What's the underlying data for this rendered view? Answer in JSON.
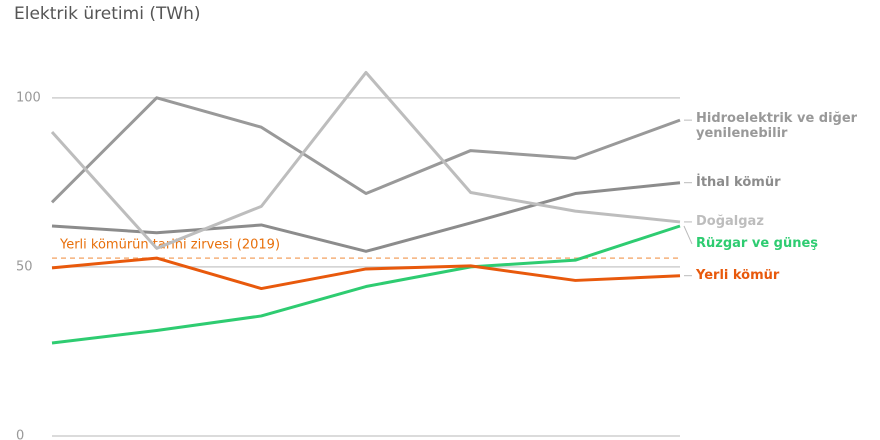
{
  "chart_data": {
    "type": "line",
    "title": "Elektrik üretimi (TWh)",
    "categories": [
      null,
      null,
      null,
      null,
      null,
      null,
      null
    ],
    "series": [
      {
        "name": "Hidroelektrik ve diğer yenilenebilir",
        "color": "#999999",
        "values": [
          69.1,
          100,
          91.3,
          71.7,
          84.4,
          82.1,
          93.4
        ]
      },
      {
        "name": "İthal kömür",
        "color": "#8c8c8c",
        "values": [
          62.1,
          60.1,
          62.4,
          54.6,
          63.0,
          71.7,
          74.9
        ]
      },
      {
        "name": "Doğalgaz",
        "color": "#bdbdbd",
        "values": [
          89.9,
          55.5,
          67.9,
          107.5,
          72.0,
          66.5,
          63.3
        ]
      },
      {
        "name": "Rüzgar ve güneş",
        "color": "#2ecc71",
        "values": [
          27.5,
          31.2,
          35.5,
          44.2,
          50,
          52,
          62.1
        ]
      },
      {
        "name": "Yerli kömür",
        "color": "#e8590c",
        "values": [
          49.7,
          52.6,
          43.6,
          49.4,
          50.3,
          46,
          47.4
        ]
      }
    ],
    "annotations": [
      {
        "text": "Yerli kömürün tarihi zirvesi (2019)",
        "value": 52.6,
        "color": "#f5b07a"
      }
    ],
    "ylim": [
      0,
      110
    ],
    "yticks": [
      0,
      50,
      100
    ],
    "grid": true
  }
}
